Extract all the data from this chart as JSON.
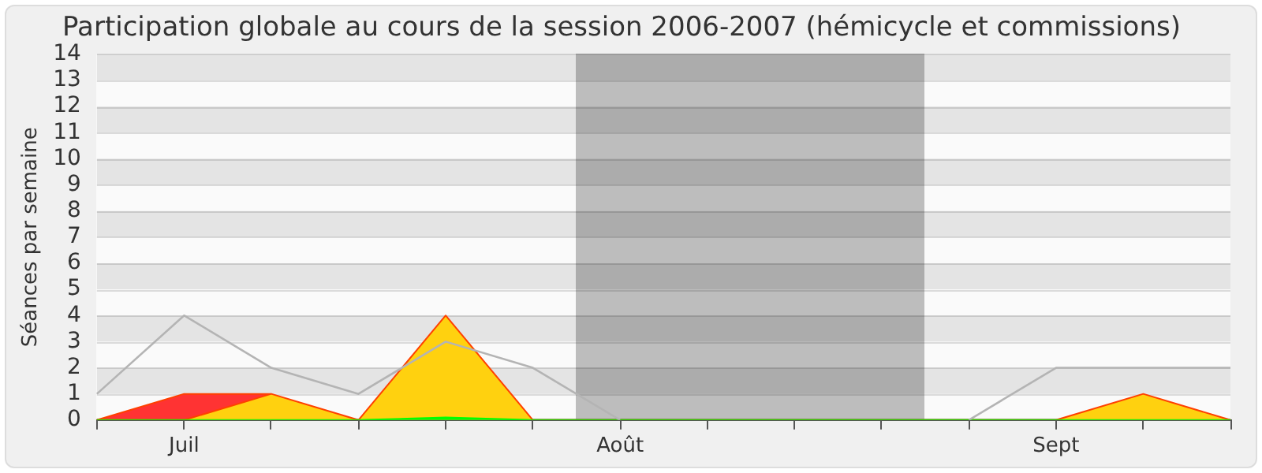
{
  "chart_data": {
    "type": "area",
    "title": "Participation globale au cours de la session 2006-2007 (hémicycle et commissions)",
    "ylabel": "Séances par semaine",
    "categories": [
      null,
      "Juil",
      null,
      null,
      null,
      null,
      "Août",
      null,
      null,
      null,
      null,
      "Sept",
      null,
      null
    ],
    "ylim": [
      0,
      14
    ],
    "yticks": [
      0,
      1,
      2,
      3,
      4,
      5,
      6,
      7,
      8,
      9,
      10,
      11,
      12,
      13,
      14
    ],
    "series": [
      {
        "type": "line",
        "color": "#b4b4b4",
        "values": [
          1,
          4,
          2,
          1,
          3,
          2,
          0,
          null,
          null,
          null,
          0,
          2,
          2,
          2
        ]
      },
      {
        "color": "#00ff00",
        "values": [
          0,
          0,
          0,
          0,
          0.1,
          0,
          0,
          0,
          0,
          0,
          0,
          0,
          0,
          0
        ]
      },
      {
        "color": "#ffd10f",
        "values": [
          0,
          0,
          1,
          0,
          4,
          0,
          0,
          0,
          0,
          0,
          0,
          0,
          1,
          0
        ]
      },
      {
        "color": "#ff3333",
        "values": [
          0,
          1,
          1,
          null,
          null,
          null,
          null,
          null,
          null,
          null,
          null,
          null,
          null,
          null
        ]
      }
    ],
    "grid": "y",
    "legend": false,
    "marker": "none",
    "line_style": "solid"
  }
}
